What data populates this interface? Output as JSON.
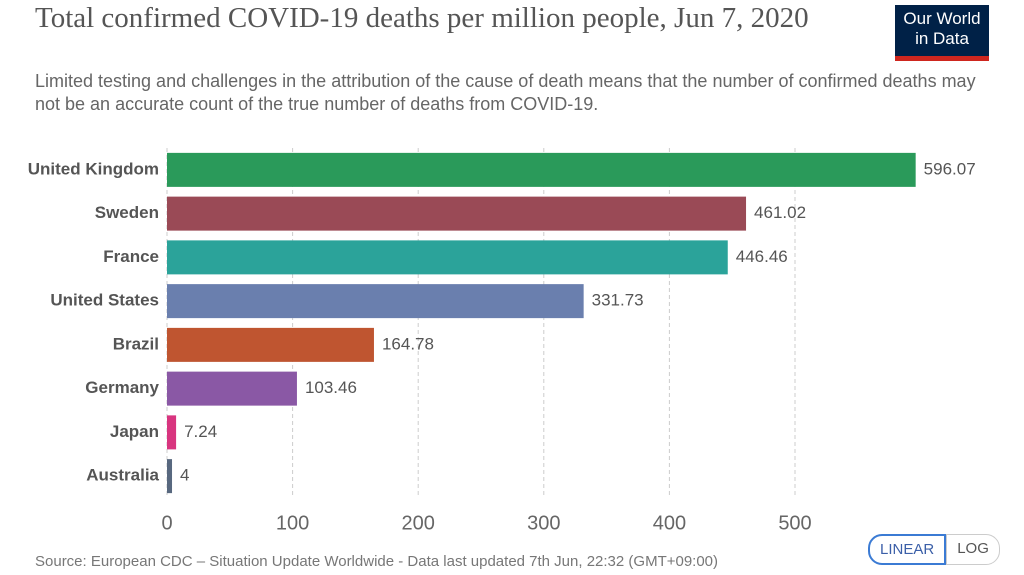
{
  "chart_data": {
    "type": "bar",
    "orientation": "horizontal",
    "title": "Total confirmed COVID-19 deaths per million people, Jun 7, 2020",
    "subtitle": "Limited testing and challenges in the attribution of the cause of death means that the number of confirmed deaths may not be an accurate count of the true number of deaths from COVID-19.",
    "source": "Source: European CDC – Situation Update Worldwide - Data last updated 7th Jun, 22:32 (GMT+09:00)",
    "categories": [
      "United Kingdom",
      "Sweden",
      "France",
      "United States",
      "Brazil",
      "Germany",
      "Japan",
      "Australia"
    ],
    "values": [
      596.07,
      461.02,
      446.46,
      331.73,
      164.78,
      103.46,
      7.24,
      4
    ],
    "colors": [
      "#2a9a5a",
      "#9a4a56",
      "#2ba39a",
      "#6a7fae",
      "#bf5530",
      "#8a58a5",
      "#d8357f",
      "#58687f"
    ],
    "xlim": [
      0,
      600
    ],
    "xticks": [
      0,
      100,
      200,
      300,
      400,
      500
    ],
    "grid": true,
    "log_scale": false,
    "scale_options": [
      "LINEAR",
      "LOG"
    ]
  },
  "logo": "Our World in Data"
}
